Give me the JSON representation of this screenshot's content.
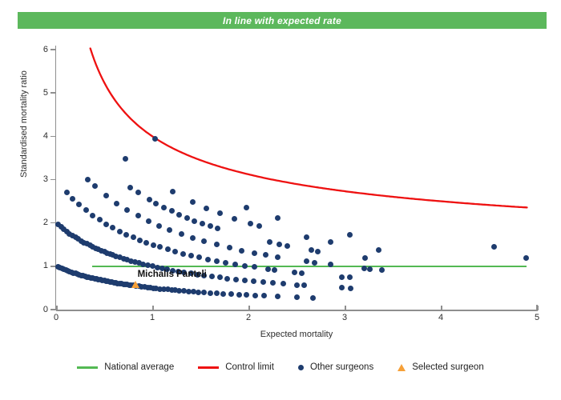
{
  "banner": {
    "text": "In line with expected rate",
    "bg_color": "#5cb85c",
    "text_color": "#ffffff"
  },
  "chart": {
    "x_axis": {
      "label": "Expected mortality",
      "ticks": [
        0,
        1,
        2,
        3,
        4,
        5
      ],
      "min": 0,
      "max": 5
    },
    "y_axis": {
      "label": "Standardised mortality ratio",
      "ticks": [
        0,
        1,
        2,
        3,
        4,
        5,
        6
      ],
      "min": 0,
      "max": 6.09
    },
    "axis_color": "#8f8f8f"
  },
  "chart_data": {
    "type": "scatter",
    "title": "In line with expected rate",
    "xlabel": "Expected mortality",
    "ylabel": "Standardised mortality ratio",
    "xlim": [
      0,
      5
    ],
    "ylim": [
      0,
      6.09
    ],
    "grid": false,
    "legend_position": "bottom",
    "national_average": {
      "label": "National average",
      "smr": 1.0,
      "e_start": 0.375,
      "e_end": 4.89,
      "color": "#53b953"
    },
    "control_limit": {
      "label": "Control limit",
      "model": "smr = intercept + coef / sqrt(expected)",
      "intercept": 1,
      "coef": 3,
      "e_start": 0.356,
      "e_end": 4.9,
      "color": "#ee1111"
    },
    "selected_surgeon": {
      "label": "Selected surgeon",
      "name": "Michalis Panteli",
      "expected": 0.83,
      "smr": 0.52,
      "color": "#f6a038"
    },
    "other_surgeons": {
      "label": "Other surgeons",
      "color": "#1e3c6e",
      "model": "smr = deaths / (1 + expected)",
      "bands": [
        {
          "deaths": 1,
          "expected": [
            0.02,
            0.04,
            0.06,
            0.08,
            0.1,
            0.12,
            0.14,
            0.16,
            0.18,
            0.2,
            0.22,
            0.24,
            0.26,
            0.28,
            0.3,
            0.32,
            0.34,
            0.36,
            0.38,
            0.4,
            0.42,
            0.44,
            0.46,
            0.48,
            0.5,
            0.52,
            0.54,
            0.56,
            0.58,
            0.6,
            0.62,
            0.64,
            0.66,
            0.68,
            0.7,
            0.72,
            0.74,
            0.76,
            0.78,
            0.8,
            0.83,
            0.86,
            0.89,
            0.92,
            0.95,
            0.98,
            1.01,
            1.04,
            1.08,
            1.12,
            1.16,
            1.2,
            1.24,
            1.28,
            1.33,
            1.38,
            1.43,
            1.48,
            1.54,
            1.6,
            1.67,
            1.74,
            1.82,
            1.9,
            1.98,
            2.07,
            2.16,
            2.3,
            2.5,
            2.67
          ]
        },
        {
          "deaths": 2,
          "expected": [
            0.02,
            0.05,
            0.08,
            0.11,
            0.14,
            0.17,
            0.2,
            0.23,
            0.26,
            0.29,
            0.32,
            0.35,
            0.38,
            0.41,
            0.44,
            0.47,
            0.5,
            0.53,
            0.56,
            0.59,
            0.62,
            0.66,
            0.7,
            0.74,
            0.78,
            0.82,
            0.86,
            0.9,
            0.95,
            1.0,
            1.05,
            1.1,
            1.15,
            1.21,
            1.27,
            1.33,
            1.4,
            1.47,
            1.54,
            1.62,
            1.7,
            1.78,
            1.87,
            1.96,
            2.05,
            2.15,
            2.25,
            2.36,
            2.5,
            2.58,
            2.97,
            3.06
          ]
        },
        {
          "deaths": 3,
          "expected": [
            0.11,
            0.17,
            0.24,
            0.31,
            0.38,
            0.45,
            0.52,
            0.59,
            0.66,
            0.73,
            0.8,
            0.87,
            0.94,
            1.01,
            1.08,
            1.16,
            1.24,
            1.32,
            1.4,
            1.49,
            1.58,
            1.67,
            1.76,
            1.86,
            1.96,
            2.06,
            2.2,
            2.27,
            2.48,
            2.55,
            2.97,
            3.05
          ]
        },
        {
          "deaths": 4,
          "expected": [
            0.33,
            0.4,
            0.52,
            0.63,
            0.74,
            0.85,
            0.96,
            1.07,
            1.18,
            1.3,
            1.42,
            1.54,
            1.67,
            1.8,
            1.93,
            2.06,
            2.18,
            2.3,
            2.6,
            2.69,
            2.85,
            3.2,
            3.26,
            3.39
          ]
        },
        {
          "deaths": 5,
          "expected": [
            0.77,
            0.85,
            0.97,
            1.04,
            1.12,
            1.2,
            1.28,
            1.36,
            1.44,
            1.52,
            1.6,
            1.68,
            2.22,
            2.32,
            2.4,
            2.65,
            2.72,
            3.21
          ]
        },
        {
          "deaths": 6,
          "expected": [
            0.72,
            1.21,
            1.42,
            1.56,
            1.7,
            1.85,
            2.02,
            2.11,
            2.6,
            2.85,
            3.35
          ]
        },
        {
          "deaths": 7,
          "expected": [
            1.98,
            2.3,
            3.05,
            4.89
          ]
        },
        {
          "deaths": 8,
          "expected": [
            1.03,
            4.55
          ]
        }
      ]
    }
  },
  "legend": {
    "items": [
      {
        "label": "National average",
        "swatch": "line",
        "color": "#53b953"
      },
      {
        "label": "Control limit",
        "swatch": "line",
        "color": "#ee1111"
      },
      {
        "label": "Other surgeons",
        "swatch": "dot",
        "color": "#1e3c6e"
      },
      {
        "label": "Selected surgeon",
        "swatch": "triangle",
        "color": "#f6a038"
      }
    ]
  }
}
